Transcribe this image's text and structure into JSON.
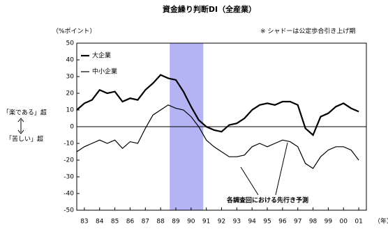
{
  "chart_data": {
    "type": "line",
    "title": "資金繰り判断DI（全産業）",
    "y_label": "（%ポイント）",
    "x_label": "（年）",
    "note": "※ シャドーは公定歩合引き上げ期",
    "upper_label": "「楽である」超",
    "lower_label": "「苦しい」超",
    "annotation": "各調査回における先行き予測",
    "shade": [
      1989.1,
      1991.3
    ],
    "shade_color": "#b4b4f4",
    "x": [
      1983,
      1983.5,
      1984,
      1984.5,
      1985,
      1985.5,
      1986,
      1986.5,
      1987,
      1987.5,
      1988,
      1988.5,
      1989,
      1989.5,
      1990,
      1990.5,
      1991,
      1991.5,
      1992,
      1992.5,
      1993,
      1993.5,
      1994,
      1994.5,
      1995,
      1995.5,
      1996,
      1996.5,
      1997,
      1997.5,
      1998,
      1998.5,
      1999,
      1999.5,
      2000,
      2000.5,
      2001,
      2001.5
    ],
    "series": [
      {
        "name": "大企業",
        "color": "#000000",
        "width": 2.2,
        "values": [
          10,
          14,
          16,
          22,
          20,
          21,
          15,
          17,
          16,
          22,
          26,
          31,
          29,
          28,
          21,
          12,
          4,
          0,
          -2,
          -3,
          1,
          2,
          5,
          10,
          13,
          14,
          13,
          15,
          15,
          13,
          -1,
          -5,
          6,
          8,
          12,
          14,
          11,
          9
        ]
      },
      {
        "name": "中小企業",
        "color": "#000000",
        "width": 1.2,
        "values": [
          -15,
          -12,
          -10,
          -8,
          -10,
          -8,
          -13,
          -9,
          -10,
          -1,
          7,
          10,
          13,
          11,
          10,
          6,
          0,
          -8,
          -12,
          -15,
          -18,
          -18,
          -17,
          -12,
          -10,
          -12,
          -10,
          -8,
          -9,
          -12,
          -22,
          -25,
          -18,
          -14,
          -12,
          -12,
          -14,
          -20
        ]
      }
    ],
    "xlim": [
      1983,
      2002
    ],
    "xticks": [
      {
        "value": 1983.5,
        "label": "83"
      },
      {
        "value": 1984.5,
        "label": "84"
      },
      {
        "value": 1985.5,
        "label": "85"
      },
      {
        "value": 1986.5,
        "label": "86"
      },
      {
        "value": 1987.5,
        "label": "87"
      },
      {
        "value": 1988.5,
        "label": "88"
      },
      {
        "value": 1989.5,
        "label": "89"
      },
      {
        "value": 1990.5,
        "label": "90"
      },
      {
        "value": 1991.5,
        "label": "91"
      },
      {
        "value": 1992.5,
        "label": "92"
      },
      {
        "value": 1993.5,
        "label": "93"
      },
      {
        "value": 1994.5,
        "label": "94"
      },
      {
        "value": 1995.5,
        "label": "95"
      },
      {
        "value": 1996.5,
        "label": "96"
      },
      {
        "value": 1997.5,
        "label": "97"
      },
      {
        "value": 1998.5,
        "label": "98"
      },
      {
        "value": 1999.5,
        "label": "99"
      },
      {
        "value": 2000.5,
        "label": "00"
      },
      {
        "value": 2001.5,
        "label": "01"
      }
    ],
    "ylim": [
      -50,
      50
    ],
    "yticks": [
      -50,
      -40,
      -30,
      -20,
      -10,
      0,
      10,
      20,
      30,
      40,
      50
    ]
  }
}
